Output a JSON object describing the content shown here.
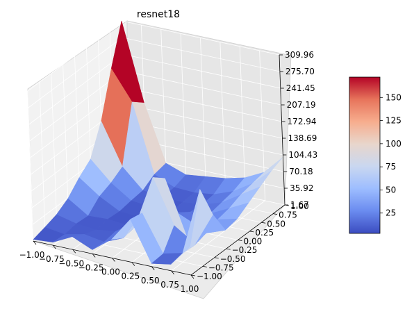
{
  "chart_data": {
    "type": "surface",
    "title": "resnet18",
    "colormap": "coolwarm",
    "colormap_stops": [
      "#3b4cc0",
      "#6a8bef",
      "#9dbdff",
      "#c9d7f0",
      "#e8d6cc",
      "#f7ad8e",
      "#e7745b",
      "#b40426"
    ],
    "x_ticks": [
      "−1.00",
      "−0.75",
      "−0.50",
      "−0.25",
      "0.00",
      "0.25",
      "0.50",
      "0.75",
      "1.00"
    ],
    "y_ticks": [
      "−1.00",
      "−0.75",
      "−0.50",
      "−0.25",
      "0.00",
      "0.25",
      "0.50",
      "0.75",
      "1.00"
    ],
    "z_ticks": [
      "1.67",
      "35.92",
      "70.18",
      "104.43",
      "138.69",
      "172.94",
      "207.19",
      "241.45",
      "275.70",
      "309.96"
    ],
    "xlim": [
      -1.0,
      1.0
    ],
    "ylim": [
      -1.0,
      1.0
    ],
    "zlim": [
      1.67,
      309.96
    ],
    "colorbar_ticks": [
      "25",
      "50",
      "75",
      "100",
      "125",
      "150"
    ],
    "colorbar_range": [
      3,
      172
    ],
    "surface": {
      "grid_x": [
        -1.0,
        -0.75,
        -0.5,
        -0.25,
        0.0,
        0.25,
        0.5,
        0.75,
        1.0
      ],
      "grid_y": [
        -1.0,
        -0.75,
        -0.5,
        -0.25,
        0.0,
        0.25,
        0.5,
        0.75,
        1.0
      ],
      "z": [
        [
          5,
          8,
          28,
          10,
          40,
          90,
          8,
          15,
          60
        ],
        [
          12,
          6,
          15,
          8,
          25,
          85,
          10,
          20,
          160
        ],
        [
          20,
          10,
          6,
          12,
          30,
          140,
          50,
          18,
          90
        ],
        [
          35,
          8,
          10,
          6,
          15,
          120,
          10,
          25,
          40
        ],
        [
          60,
          30,
          8,
          5,
          10,
          30,
          12,
          35,
          45
        ],
        [
          80,
          40,
          12,
          8,
          6,
          15,
          20,
          40,
          60
        ],
        [
          140,
          55,
          15,
          10,
          8,
          12,
          25,
          50,
          75
        ],
        [
          230,
          170,
          30,
          12,
          10,
          15,
          30,
          55,
          90
        ],
        [
          310,
          150,
          35,
          20,
          25,
          30,
          40,
          60,
          100
        ]
      ]
    }
  }
}
